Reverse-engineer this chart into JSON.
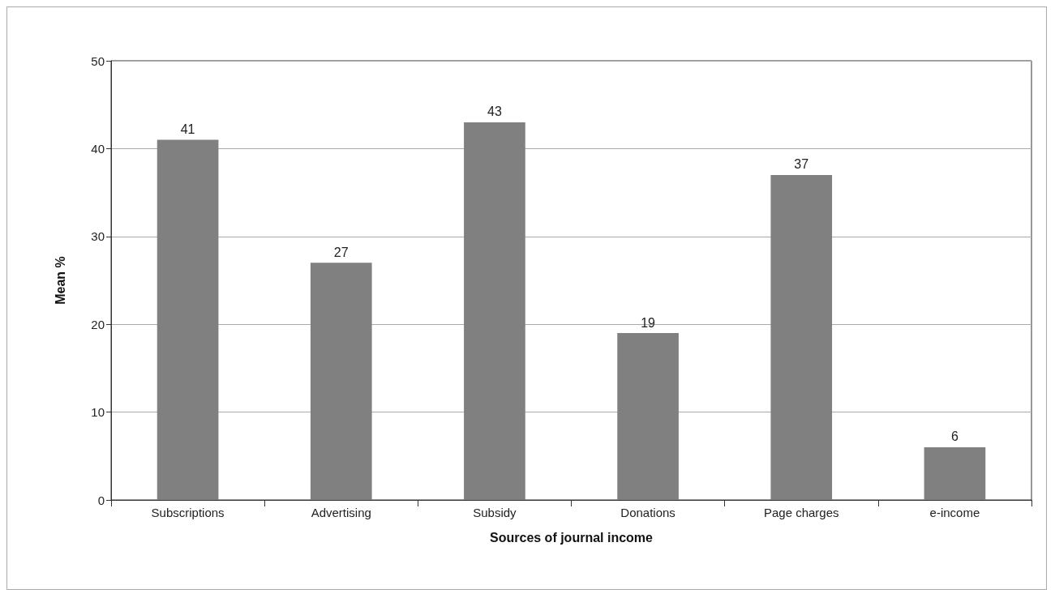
{
  "chart_data": {
    "type": "bar",
    "xlabel": "Sources of journal income",
    "ylabel": "Mean %",
    "categories": [
      "Subscriptions",
      "Advertising",
      "Subsidy",
      "Donations",
      "Page charges",
      "e-income"
    ],
    "values": [
      41,
      27,
      43,
      19,
      37,
      6
    ],
    "color": "#808080",
    "ylim": [
      0,
      50
    ],
    "yticks": [
      0,
      10,
      20,
      30,
      40,
      50
    ],
    "grid": "y",
    "data_labels": true
  }
}
